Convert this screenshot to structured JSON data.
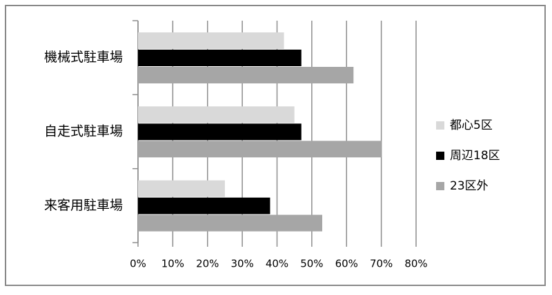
{
  "chart_data": {
    "type": "bar",
    "orientation": "horizontal",
    "categories": [
      "機械式駐車場",
      "自走式駐車場",
      "来客用駐車場"
    ],
    "series": [
      {
        "name": "都心5区",
        "color": "#d9d9d9",
        "values": [
          42,
          45,
          25
        ]
      },
      {
        "name": "周辺18区",
        "color": "#000000",
        "values": [
          47,
          47,
          38
        ]
      },
      {
        "name": "23区外",
        "color": "#a6a6a6",
        "values": [
          62,
          70,
          53
        ]
      }
    ],
    "xlim": [
      0,
      80
    ],
    "xticks": [
      {
        "value": 0,
        "label": "0%"
      },
      {
        "value": 10,
        "label": "10%"
      },
      {
        "value": 20,
        "label": "20%"
      },
      {
        "value": 30,
        "label": "30%"
      },
      {
        "value": 40,
        "label": "40%"
      },
      {
        "value": 50,
        "label": "50%"
      },
      {
        "value": 60,
        "label": "60%"
      },
      {
        "value": 70,
        "label": "70%"
      },
      {
        "value": 80,
        "label": "80%"
      }
    ],
    "grid": true,
    "legend": "right"
  }
}
